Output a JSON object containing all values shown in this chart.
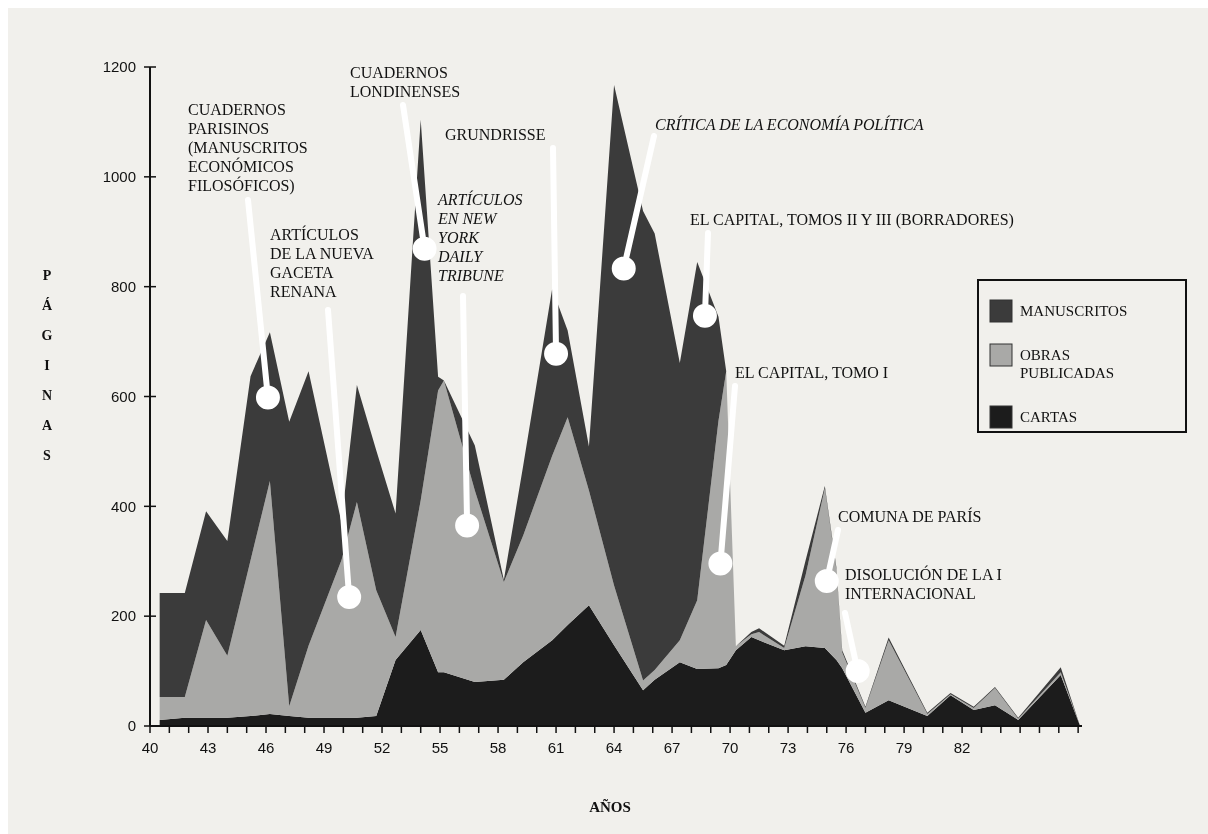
{
  "chart_data": {
    "type": "area",
    "stacked": true,
    "xlabel": "AÑOS",
    "ylabel": "PÁGINAS",
    "x": [
      40.5,
      41.8,
      42.9,
      44.0,
      45.2,
      46.2,
      47.2,
      48.2,
      49.9,
      50.7,
      51.7,
      52.7,
      54.0,
      54.9,
      55.2,
      56.8,
      58.3,
      59.3,
      60.8,
      61.6,
      62.7,
      64.0,
      65.5,
      66.1,
      67.4,
      68.3,
      69.4,
      69.8,
      70.3,
      71.1,
      71.5,
      72.8,
      73.9,
      74.9,
      75.5,
      75.8,
      77.0,
      78.2,
      80.2,
      81.4,
      82.6,
      83.7,
      84.9,
      87.1,
      88.1
    ],
    "series": [
      {
        "name": "CARTAS",
        "color": "#1c1c1c",
        "values": [
          11,
          15,
          15,
          15,
          18,
          22,
          18,
          15,
          15,
          15,
          18,
          120,
          175,
          98,
          98,
          80,
          84,
          116,
          156,
          184,
          220,
          147,
          65,
          84,
          116,
          104,
          105,
          111,
          138,
          162,
          156,
          138,
          145,
          142,
          120,
          105,
          24,
          47,
          18,
          56,
          29,
          38,
          11,
          93,
          0
        ]
      },
      {
        "name": "OBRAS PUBLICADAS",
        "color": "#a9a9a7",
        "values": [
          42,
          38,
          178,
          113,
          284,
          424,
          18,
          131,
          287,
          393,
          229,
          42,
          236,
          513,
          531,
          349,
          178,
          231,
          336,
          378,
          209,
          109,
          18,
          18,
          40,
          125,
          451,
          535,
          7,
          5,
          15,
          4,
          129,
          291,
          164,
          29,
          9,
          109,
          4,
          2,
          4,
          31,
          2,
          5,
          0
        ]
      },
      {
        "name": "MANUSCRITOS",
        "color": "#3b3b3b",
        "values": [
          189,
          189,
          198,
          209,
          335,
          271,
          518,
          500,
          69,
          213,
          255,
          225,
          693,
          25,
          0,
          82,
          4,
          127,
          304,
          158,
          80,
          911,
          855,
          795,
          505,
          616,
          189,
          0,
          0,
          4,
          7,
          4,
          27,
          4,
          4,
          4,
          2,
          5,
          2,
          2,
          2,
          2,
          2,
          9,
          0
        ]
      }
    ],
    "xlim": [
      40,
      88.2
    ],
    "xticks": [
      40,
      {
        "value": 41,
        "label": null
      },
      {
        "value": 42,
        "label": null
      },
      43,
      {
        "value": 44,
        "label": null
      },
      {
        "value": 45,
        "label": null
      },
      46,
      {
        "value": 47,
        "label": null
      },
      {
        "value": 48,
        "label": null
      },
      49,
      {
        "value": 50,
        "label": null
      },
      {
        "value": 51,
        "label": null
      },
      52,
      {
        "value": 53,
        "label": null
      },
      {
        "value": 54,
        "label": null
      },
      55,
      {
        "value": 56,
        "label": null
      },
      {
        "value": 57,
        "label": null
      },
      58,
      {
        "value": 59,
        "label": null
      },
      {
        "value": 60,
        "label": null
      },
      61,
      {
        "value": 62,
        "label": null
      },
      {
        "value": 63,
        "label": null
      },
      64,
      {
        "value": 65,
        "label": null
      },
      {
        "value": 66,
        "label": null
      },
      67,
      {
        "value": 68,
        "label": null
      },
      {
        "value": 69,
        "label": null
      },
      70,
      {
        "value": 71,
        "label": null
      },
      {
        "value": 72,
        "label": null
      },
      73,
      {
        "value": 74,
        "label": null
      },
      {
        "value": 75,
        "label": null
      },
      76,
      {
        "value": 77,
        "label": null
      },
      {
        "value": 78,
        "label": null
      },
      79,
      {
        "value": 80,
        "label": null
      },
      {
        "value": 81,
        "label": null
      },
      82,
      {
        "value": 83,
        "label": null
      },
      {
        "value": 84,
        "label": null
      },
      {
        "value": 85,
        "label": null
      },
      {
        "value": 86,
        "label": null
      },
      {
        "value": 87,
        "label": null
      },
      {
        "value": 88,
        "label": null
      }
    ],
    "ylim": [
      0,
      1200
    ],
    "yticks": [
      0,
      200,
      400,
      600,
      800,
      1000,
      1200
    ],
    "grid": false,
    "legend": "top right",
    "annotations": [
      {
        "text": "CUADERNOS PARISINOS (MANUSCRITOS ECONÓMICOS FILOSÓFICOS)",
        "x": 46.1,
        "y": 598
      },
      {
        "text": "ARTÍCULOS DE LA NUEVA GACETA RENANA",
        "x": 50.3,
        "y": 235
      },
      {
        "text": "CUADERNOS LONDINENSES",
        "x": 54.2,
        "y": 869
      },
      {
        "text": "ARTÍCULOS EN NEW YORK DAILY TRIBUNE",
        "x": 56.4,
        "y": 365
      },
      {
        "text": "GRUNDRISSE",
        "x": 61.0,
        "y": 678
      },
      {
        "text": "CRÍTICA DE LA ECONOMÍA POLÍTICA",
        "x": 64.5,
        "y": 833
      },
      {
        "text": "EL CAPITAL, TOMOS II Y III (BORRADORES)",
        "x": 68.7,
        "y": 747
      },
      {
        "text": "EL CAPITAL, TOMO I",
        "x": 69.5,
        "y": 296
      },
      {
        "text": "COMUNA DE PARÍS",
        "x": 75.0,
        "y": 264
      },
      {
        "text": "DISOLUCIÓN DE LA I INTERNACIONAL",
        "x": 76.6,
        "y": 100
      }
    ]
  }
}
